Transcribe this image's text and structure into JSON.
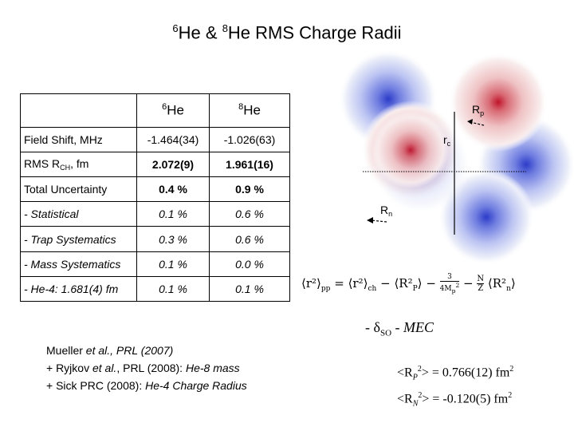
{
  "title": {
    "pre": "6",
    "mid": "He & ",
    "pre2": "8",
    "post": "He RMS Charge Radii"
  },
  "table": {
    "header": {
      "he6_sup": "6",
      "he6": "He",
      "he8_sup": "8",
      "he8": "He"
    },
    "rows": [
      {
        "label": "Field Shift, MHz",
        "he6": "-1.464(34)",
        "he8": "-1.026(63)"
      },
      {
        "label_a": "RMS R",
        "label_sub": "CH",
        "label_b": ", fm",
        "he6": "2.072(9)",
        "he8": "1.961(16)"
      },
      {
        "label": "Total Uncertainty",
        "he6": "0.4 %",
        "he8": "0.9 %"
      },
      {
        "label": "- Statistical",
        "he6": "0.1 %",
        "he8": "0.6 %"
      },
      {
        "label": "- Trap Systematics",
        "he6": "0.3 %",
        "he8": "0.6 %"
      },
      {
        "label": "- Mass Systematics",
        "he6": "0.1 %",
        "he8": "0.0 %"
      },
      {
        "label": "- He-4: 1.681(4) fm",
        "he6": "0.1 %",
        "he8": "0.1 %"
      }
    ]
  },
  "diagram": {
    "rp": "R",
    "rp_sub": "p",
    "rc": "r",
    "rc_sub": "c",
    "rn": "R",
    "rn_sub": "n"
  },
  "formula": {
    "lhs": "⟨r²⟩",
    "lhs_sub": "pp",
    "eq": "=",
    "t1": "⟨r²⟩",
    "t1_sub": "ch",
    "minus1": "−",
    "t2": "⟨R²",
    "t2_sub": "P",
    "t2_end": "⟩",
    "minus2": "−",
    "frac_num": "3",
    "frac_den": "4M",
    "frac_den_sub": "p",
    "frac_den_sup": "2",
    "minus3": "−",
    "nz_num": "N",
    "nz_den": "Z",
    "t3": "⟨R²",
    "t3_sub": "n",
    "t3_end": "⟩"
  },
  "corrections": {
    "a": "- δ",
    "a_sub": "SO",
    "b": " - ",
    "c": "MEC"
  },
  "references": {
    "line1_a": "Mueller ",
    "line1_b": "et al.",
    "line1_c": ", PRL (2007)",
    "line2_a": "+ Ryjkov ",
    "line2_b": "et al.",
    "line2_c": ", PRL (2008): ",
    "line2_d": "He-8 mass",
    "line3_a": "+ Sick PRC  (2008): ",
    "line3_b": "He-4 Charge Radius"
  },
  "values": {
    "p_a": "<R",
    "p_sub": "P",
    "p_sup": "2",
    "p_b": "> = 0.766(12) fm",
    "p_unit_sup": "2",
    "n_a": "<R",
    "n_sub": "N",
    "n_sup": "2",
    "n_b": "> = -0.120(5) fm",
    "n_unit_sup": "2"
  },
  "colors": {
    "blue_nucleon": "#2c3cc8",
    "red_nucleon": "#c0142a"
  }
}
